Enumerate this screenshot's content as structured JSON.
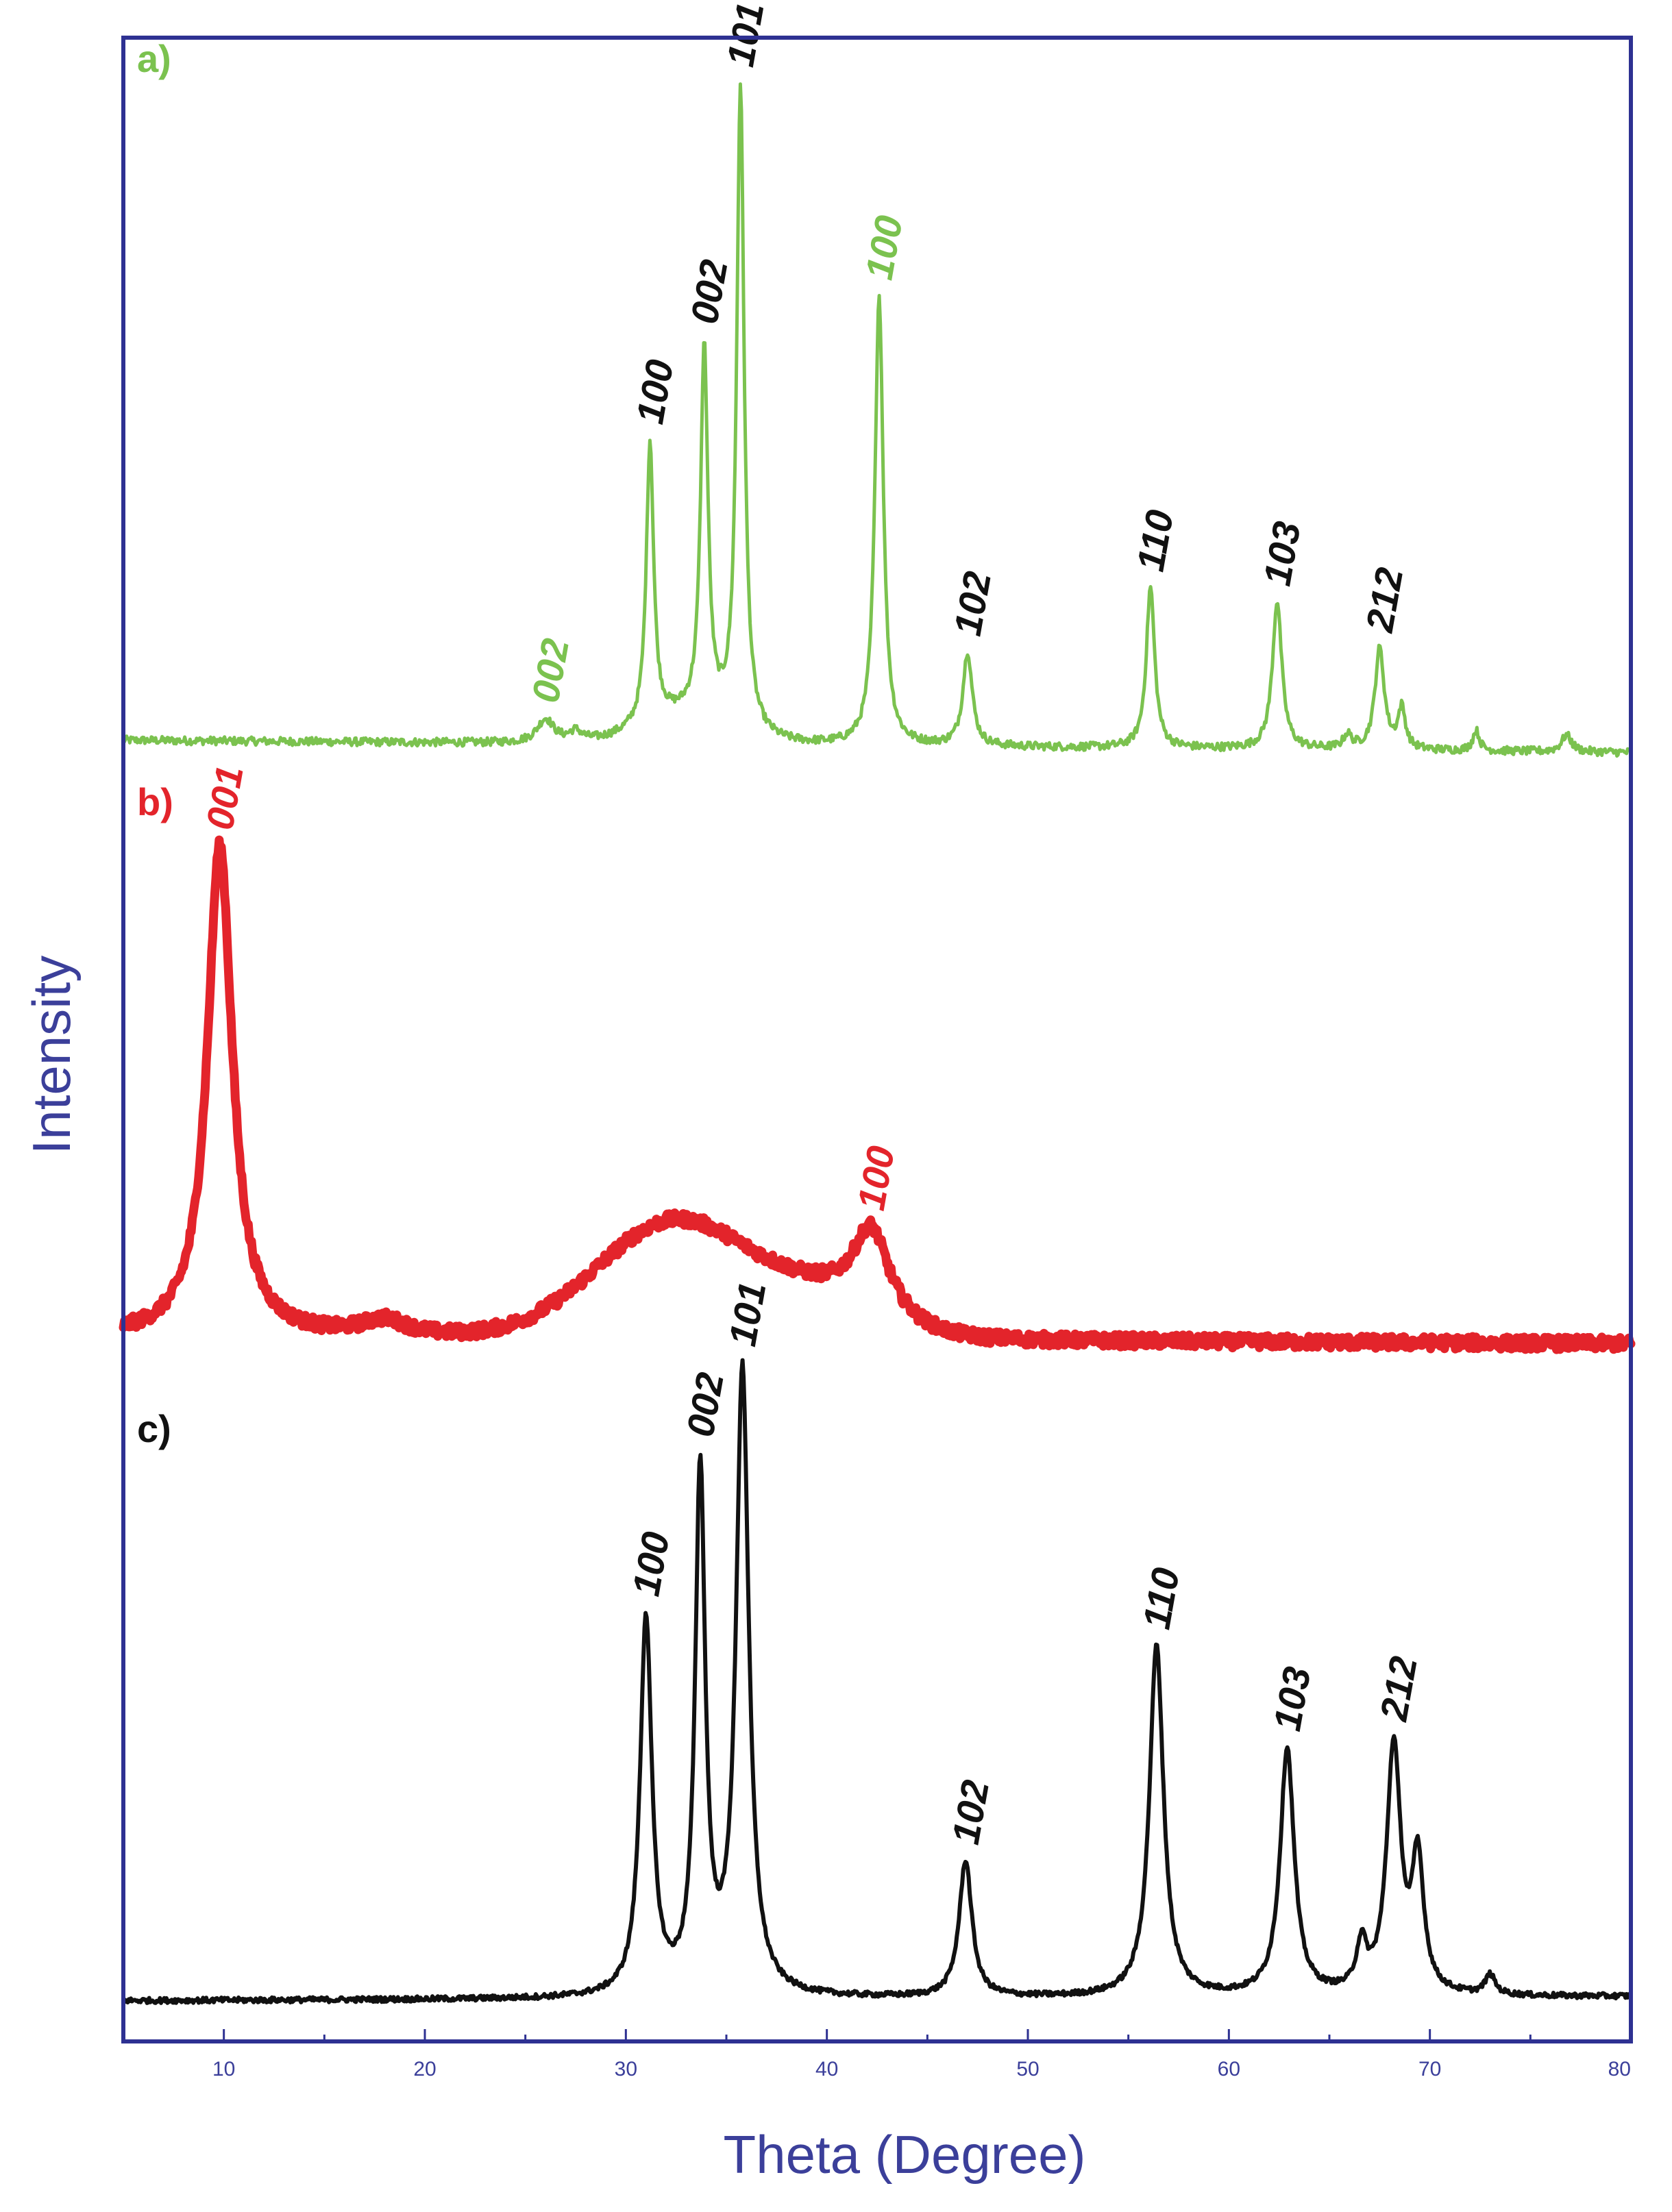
{
  "chart_data": {
    "type": "line",
    "xlabel": "Theta (Degree)",
    "ylabel": "Intensity",
    "xlim": [
      5,
      80
    ],
    "x_ticks": [
      "10",
      "20",
      "30",
      "40",
      "50",
      "60",
      "70",
      "80"
    ],
    "grid": false,
    "colors": {
      "a": "#7bc24f",
      "b": "#e3242b",
      "c": "#111111",
      "frame": "#2e3192",
      "axis_text": "#3b3f9a"
    },
    "series": [
      {
        "name": "a)",
        "baseline": 0.03,
        "noise": 0.006,
        "peaks": [
          {
            "x": 26.0,
            "h": 0.035,
            "w": 0.5,
            "label": "002",
            "label_color": "#7bc24f"
          },
          {
            "x": 27.5,
            "h": 0.015,
            "w": 0.4
          },
          {
            "x": 31.2,
            "h": 0.42,
            "w": 0.22,
            "label": "100",
            "label_color": "#111111"
          },
          {
            "x": 33.9,
            "h": 0.55,
            "w": 0.22,
            "label": "002",
            "label_color": "#111111"
          },
          {
            "x": 35.7,
            "h": 0.96,
            "w": 0.22,
            "label": "101",
            "label_color": "#111111"
          },
          {
            "x": 42.6,
            "h": 0.67,
            "w": 0.25,
            "label": "100",
            "label_color": "#7bc24f"
          },
          {
            "x": 47.0,
            "h": 0.14,
            "w": 0.28,
            "label": "102",
            "label_color": "#111111"
          },
          {
            "x": 56.1,
            "h": 0.24,
            "w": 0.25,
            "label": "110",
            "label_color": "#111111"
          },
          {
            "x": 62.4,
            "h": 0.22,
            "w": 0.28,
            "label": "103",
            "label_color": "#111111"
          },
          {
            "x": 67.5,
            "h": 0.15,
            "w": 0.28,
            "label": "212",
            "label_color": "#111111"
          },
          {
            "x": 68.6,
            "h": 0.06,
            "w": 0.22
          },
          {
            "x": 65.9,
            "h": 0.02,
            "w": 0.25
          },
          {
            "x": 72.3,
            "h": 0.03,
            "w": 0.2
          },
          {
            "x": 76.8,
            "h": 0.025,
            "w": 0.3
          }
        ],
        "humps": [
          {
            "x": 33.0,
            "h": 0.04,
            "w": 3.0
          }
        ]
      },
      {
        "name": "b)",
        "baseline": 0.03,
        "noise": 0.012,
        "peaks": [
          {
            "x": 9.8,
            "h": 0.92,
            "w": 0.75,
            "label": "001",
            "label_color": "#e3242b"
          },
          {
            "x": 42.2,
            "h": 0.16,
            "w": 1.1,
            "label": "100",
            "label_color": "#e3242b"
          },
          {
            "x": 18.0,
            "h": 0.03,
            "w": 1.4
          }
        ],
        "humps": [
          {
            "x": 32.5,
            "h": 0.22,
            "w": 5.5
          },
          {
            "x": 40.0,
            "h": 0.06,
            "w": 4.0
          }
        ]
      },
      {
        "name": "c)",
        "baseline": 0.015,
        "noise": 0.004,
        "peaks": [
          {
            "x": 31.0,
            "h": 0.58,
            "w": 0.35,
            "label": "100",
            "label_color": "#111111"
          },
          {
            "x": 33.7,
            "h": 0.8,
            "w": 0.3,
            "label": "002",
            "label_color": "#111111"
          },
          {
            "x": 35.8,
            "h": 0.96,
            "w": 0.38,
            "label": "101",
            "label_color": "#111111"
          },
          {
            "x": 46.9,
            "h": 0.21,
            "w": 0.38,
            "label": "102",
            "label_color": "#111111"
          },
          {
            "x": 56.4,
            "h": 0.54,
            "w": 0.42,
            "label": "110",
            "label_color": "#111111"
          },
          {
            "x": 62.9,
            "h": 0.38,
            "w": 0.42,
            "label": "103",
            "label_color": "#111111"
          },
          {
            "x": 68.2,
            "h": 0.38,
            "w": 0.42,
            "label": "212",
            "label_color": "#111111"
          },
          {
            "x": 69.4,
            "h": 0.2,
            "w": 0.35
          },
          {
            "x": 66.6,
            "h": 0.07,
            "w": 0.3
          },
          {
            "x": 73.0,
            "h": 0.03,
            "w": 0.3
          }
        ],
        "humps": []
      }
    ]
  }
}
